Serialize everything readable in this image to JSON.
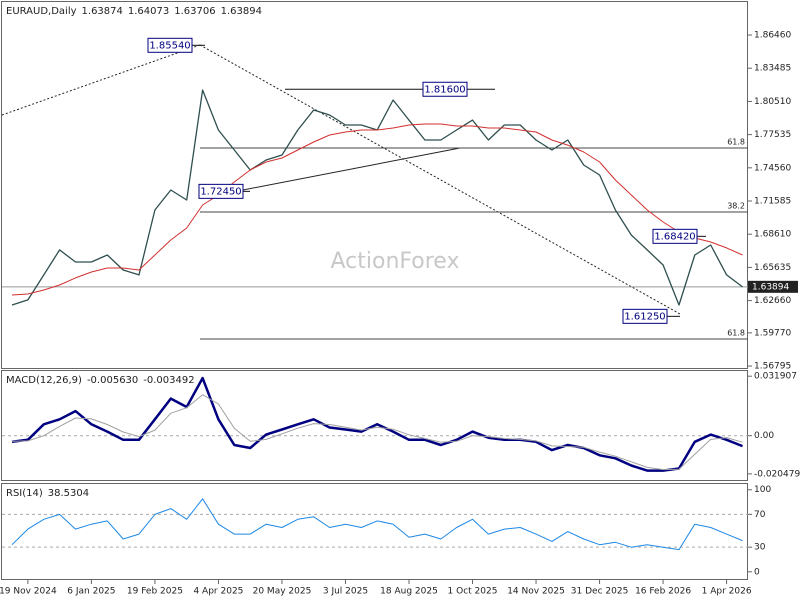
{
  "chart_data": [
    {
      "type": "line",
      "title": "EURAUD,Daily",
      "ohlc": [
        1.63874,
        1.64073,
        1.63706,
        1.63894
      ],
      "watermark": "ActionForex",
      "categories": [
        null,
        "19 Nov 2024",
        null,
        null,
        null,
        "6 Jan 2025",
        null,
        null,
        null,
        "19 Feb 2025",
        null,
        null,
        null,
        "4 Apr 2025",
        null,
        null,
        null,
        "20 May 2025",
        null,
        null,
        null,
        "3 Jul 2025",
        null,
        null,
        null,
        "18 Aug 2025",
        null,
        null,
        null,
        "1 Oct 2025",
        null,
        null,
        null,
        "14 Nov 2025",
        null,
        null,
        null,
        "31 Dec 2025",
        null,
        null,
        null,
        "16 Feb 2026",
        null,
        null,
        null,
        "1 Apr 2026",
        null
      ],
      "series": [
        {
          "color": "#2f4f4f",
          "values": [
            1.6227,
            1.6272,
            1.6496,
            1.672,
            1.6612,
            1.6612,
            1.6675,
            1.654,
            1.6496,
            1.7078,
            1.7257,
            1.7168,
            1.8153,
            1.7795,
            1.7616,
            1.7436,
            1.7526,
            1.7571,
            1.7795,
            1.7974,
            1.7929,
            1.784,
            1.784,
            1.7795,
            1.8064,
            1.7884,
            1.7705,
            1.7705,
            1.7795,
            1.7884,
            1.7705,
            1.784,
            1.784,
            1.7705,
            1.7616,
            1.7705,
            1.7481,
            1.7392,
            1.7078,
            1.6854,
            1.672,
            1.6585,
            1.6227,
            1.6675,
            1.6764,
            1.6496,
            1.6389
          ]
        },
        {
          "color": "#d32f2f",
          "values": [
            1.6316,
            1.6325,
            1.6361,
            1.6406,
            1.6469,
            1.6522,
            1.6558,
            1.6558,
            1.654,
            1.6675,
            1.6809,
            1.6917,
            1.7123,
            1.7212,
            1.7329,
            1.7436,
            1.7508,
            1.7544,
            1.7616,
            1.7687,
            1.775,
            1.7777,
            1.7795,
            1.7795,
            1.7813,
            1.784,
            1.7849,
            1.7849,
            1.7831,
            1.7831,
            1.7813,
            1.7813,
            1.7795,
            1.7777,
            1.7705,
            1.766,
            1.7598,
            1.7508,
            1.7347,
            1.7212,
            1.7078,
            1.697,
            1.6881,
            1.6827,
            1.6791,
            1.6738,
            1.6675
          ]
        }
      ],
      "ylim": [
        1.5653,
        1.8942
      ],
      "yticks": [
        {
          "value": 1.8646,
          "label": "1.86460"
        },
        1.83485,
        {
          "value": 1.8051,
          "label": "1.80510"
        },
        1.77535,
        {
          "value": 1.7456,
          "label": "1.74560"
        },
        1.71585,
        {
          "value": 1.6861,
          "label": "1.68610"
        },
        1.65635,
        {
          "value": 1.6266,
          "label": "1.62660"
        },
        {
          "value": 1.5977,
          "label": "1.59770"
        },
        1.56795
      ],
      "levels": [
        {
          "value": 1.7634,
          "label": "61.8"
        },
        {
          "value": 1.706,
          "label": "38.2"
        },
        {
          "value": 1.5922,
          "label": "61.8"
        }
      ],
      "annotations": [
        {
          "value": 1.8554,
          "label": "1.85540"
        },
        {
          "value": 1.816,
          "label": "1.81600"
        },
        {
          "value": 1.7245,
          "label": "1.72450"
        },
        {
          "value": 1.6842,
          "label": "1.68420"
        },
        {
          "value": 1.6125,
          "label": "1.61250"
        }
      ],
      "last_price": 1.63894
    },
    {
      "type": "line",
      "title": "MACD(12,26,9)",
      "readout": [
        {
          "value": -0.00563,
          "label": "-0.005630"
        },
        -0.003492
      ],
      "series": [
        {
          "color": "#000080",
          "values": [
            -0.0033,
            -0.0022,
            0.0061,
            0.0088,
            0.0132,
            0.0061,
            0.0022,
            -0.0022,
            -0.0022,
            0.0088,
            0.0199,
            0.0154,
            0.0309,
            0.0088,
            -0.005,
            -0.0066,
            0.0006,
            0.0033,
            0.0061,
            0.0088,
            0.0044,
            0.0033,
            0.0022,
            0.0061,
            0.0022,
            -0.0022,
            -0.0022,
            -0.005,
            -0.0022,
            0.0022,
            -0.0011,
            -0.0022,
            -0.0022,
            -0.0033,
            -0.0077,
            -0.005,
            -0.0066,
            -0.0105,
            -0.0121,
            -0.016,
            -0.0187,
            -0.0187,
            -0.0176,
            -0.0033,
            0.0006,
            -0.0022,
            -0.0056
          ]
        },
        {
          "color": "#a0a0a0",
          "values": [
            -0.003,
            -0.0028,
            0,
            0.005,
            0.0095,
            0.009,
            0.006,
            0.002,
            -0.0005,
            0.003,
            0.012,
            0.015,
            0.022,
            0.017,
            0.004,
            -0.003,
            -0.002,
            0.001,
            0.004,
            0.0065,
            0.006,
            0.0045,
            0.003,
            0.0045,
            0.0035,
            0.0005,
            -0.0015,
            -0.0035,
            -0.003,
            0,
            -0.0005,
            -0.0015,
            -0.002,
            -0.0028,
            -0.0055,
            -0.0058,
            -0.0062,
            -0.0088,
            -0.011,
            -0.014,
            -0.017,
            -0.0182,
            -0.018,
            -0.01,
            -0.002,
            -0.001,
            -0.0035
          ]
        }
      ],
      "ylim": [
        -0.0243,
        0.0347
      ],
      "yticks": [
        0.031907,
        {
          "value": 0,
          "label": "0.00"
        },
        -0.020479
      ],
      "levels": [
        0
      ]
    },
    {
      "type": "line",
      "title": "RSI(14)",
      "readout": [
        38.5304
      ],
      "series": [
        {
          "color": "#1e88e5",
          "values": [
            33,
            52,
            64,
            70,
            52,
            58,
            62,
            40,
            46,
            70,
            77,
            64,
            89,
            58,
            46,
            46,
            58,
            54,
            64,
            67,
            54,
            58,
            54,
            62,
            58,
            42,
            46,
            40,
            54,
            64,
            46,
            52,
            54,
            46,
            37,
            49,
            40,
            33,
            36,
            30,
            33,
            30,
            27,
            58,
            54,
            46,
            38
          ]
        }
      ],
      "ylim": [
        -10,
        107
      ],
      "yticks": [
        100,
        70,
        30,
        0
      ],
      "levels": [
        70,
        30
      ]
    }
  ]
}
